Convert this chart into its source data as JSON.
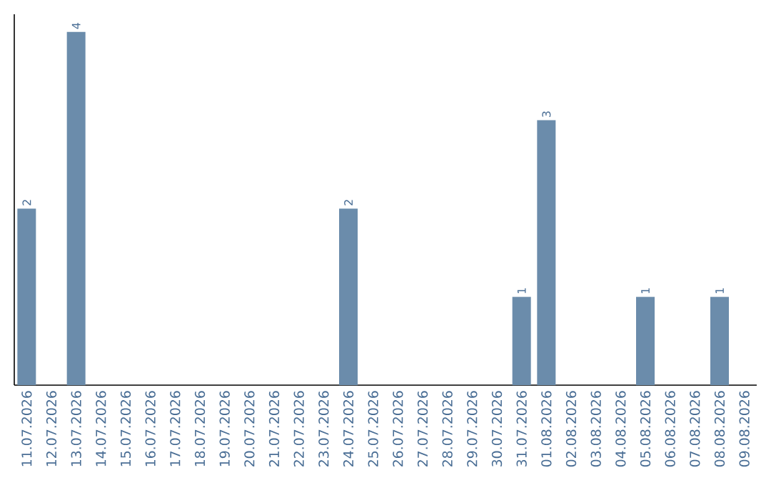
{
  "chart_data": {
    "type": "bar",
    "categories": [
      "11.07.2026",
      "12.07.2026",
      "13.07.2026",
      "14.07.2026",
      "15.07.2026",
      "16.07.2026",
      "17.07.2026",
      "18.07.2026",
      "19.07.2026",
      "20.07.2026",
      "21.07.2026",
      "22.07.2026",
      "23.07.2026",
      "24.07.2026",
      "25.07.2026",
      "26.07.2026",
      "27.07.2026",
      "28.07.2026",
      "29.07.2026",
      "30.07.2026",
      "31.07.2026",
      "01.08.2026",
      "02.08.2026",
      "03.08.2026",
      "04.08.2026",
      "05.08.2026",
      "06.08.2026",
      "07.08.2026",
      "08.08.2026",
      "09.08.2026"
    ],
    "values": [
      2,
      0,
      4,
      0,
      0,
      0,
      0,
      0,
      0,
      0,
      0,
      0,
      0,
      2,
      0,
      0,
      0,
      0,
      0,
      0,
      1,
      3,
      0,
      0,
      0,
      1,
      0,
      0,
      1,
      0
    ],
    "value_labels": [
      "2",
      null,
      "4",
      null,
      null,
      null,
      null,
      null,
      null,
      null,
      null,
      null,
      null,
      "2",
      null,
      null,
      null,
      null,
      null,
      null,
      "1",
      "3",
      null,
      null,
      null,
      "1",
      null,
      null,
      "1",
      null
    ],
    "color": "#6b8cab",
    "tick_labels": "x"
  }
}
